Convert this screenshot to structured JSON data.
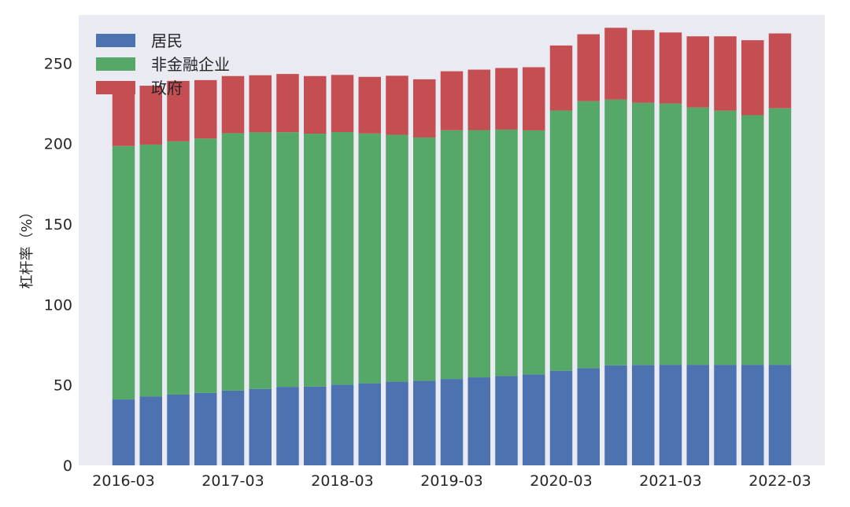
{
  "chart_data": {
    "type": "bar",
    "stacked": true,
    "ylabel": "杠杆率（%）",
    "ylim": [
      0,
      280
    ],
    "yticks": [
      0,
      50,
      100,
      150,
      200,
      250
    ],
    "grid": false,
    "legend_position": "top-left",
    "categories": [
      "2016-03",
      "2016-06",
      "2016-09",
      "2016-12",
      "2017-03",
      "2017-06",
      "2017-09",
      "2017-12",
      "2018-03",
      "2018-06",
      "2018-09",
      "2018-12",
      "2019-03",
      "2019-06",
      "2019-09",
      "2019-12",
      "2020-03",
      "2020-06",
      "2020-09",
      "2020-12",
      "2021-03",
      "2021-06",
      "2021-09",
      "2021-12",
      "2022-03"
    ],
    "xticks": [
      "2016-03",
      "2017-03",
      "2018-03",
      "2019-03",
      "2020-03",
      "2021-03",
      "2022-03"
    ],
    "series": [
      {
        "name": "居民",
        "color": "#4c72b0",
        "values": [
          41,
          42.8,
          44,
          45,
          46.5,
          47.5,
          48.8,
          49,
          50.2,
          51,
          52,
          52.5,
          53.7,
          54.7,
          55.5,
          56.5,
          58.8,
          60.4,
          62.2,
          62.4,
          62.5,
          62.5,
          62.5,
          62.5,
          62.5
        ]
      },
      {
        "name": "非金融企业",
        "color": "#55a868",
        "values": [
          157.5,
          156.6,
          157.4,
          158.2,
          160,
          159.5,
          158.3,
          157.2,
          157,
          155.3,
          153.5,
          151.3,
          154.6,
          153.7,
          153.2,
          151.7,
          161.8,
          166,
          165.2,
          163,
          162.5,
          160,
          158,
          155.2,
          159.5
        ]
      },
      {
        "name": "政府",
        "color": "#c44e52",
        "values": [
          36.5,
          36.6,
          37.6,
          36.3,
          35.5,
          35.5,
          36.2,
          35.8,
          35.5,
          35.2,
          36.7,
          36.2,
          36.7,
          37.6,
          38.3,
          39.3,
          40.4,
          41.6,
          44.6,
          45.2,
          44.1,
          44.2,
          46.2,
          46.6,
          46.5
        ]
      }
    ]
  }
}
